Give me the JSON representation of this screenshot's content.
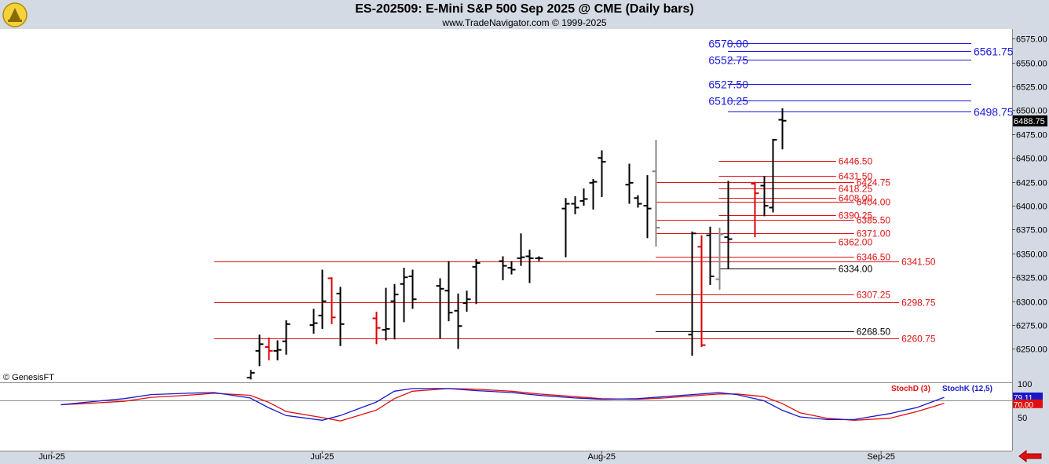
{
  "header": {
    "title": "ES-202509:  E-Mini S&P 500 Sep 2025 @ CME  (Daily bars)",
    "subtitle": "www.TradeNavigator.com © 1999-2025"
  },
  "watermark": "© GenesisFT",
  "colors": {
    "background": "#ffffff",
    "chrome": "#d3dae3",
    "blue_level": "#1a1adc",
    "red_level": "#dc1414",
    "black_level": "#000000",
    "stoch_d": "#e01010",
    "stoch_k": "#1818c8",
    "price_tag": "#000000",
    "down_bar": "#dd0000",
    "gray_bar": "#888888"
  },
  "chart_data": [
    {
      "type": "ohlc",
      "ylim": [
        6215,
        6585
      ],
      "yticks": [
        6250,
        6275,
        6300,
        6325,
        6350,
        6375,
        6400,
        6425,
        6450,
        6475,
        6500,
        6525,
        6550,
        6575
      ],
      "ytick_labels": [
        "6250.00",
        "6275.00",
        "6300.00",
        "6325.00",
        "6350.00",
        "6375.00",
        "6400.00",
        "6425.00",
        "6450.00",
        "6475.00",
        "6500.00",
        "6525.00",
        "6550.00",
        "6575.00"
      ],
      "last_price": "6488.75",
      "x_months": [
        "Jun-25",
        "Jul-25",
        "Aug-25",
        "Sep-25"
      ],
      "bars": [
        {
          "date": "2025-06-23",
          "o": 6220,
          "h": 6228,
          "l": 6218,
          "c": 6225,
          "col": "black"
        },
        {
          "date": "2025-06-24",
          "o": 6248,
          "h": 6265,
          "l": 6232,
          "c": 6255,
          "col": "black"
        },
        {
          "date": "2025-06-25",
          "o": 6252,
          "h": 6262,
          "l": 6238,
          "c": 6248,
          "col": "red"
        },
        {
          "date": "2025-06-26",
          "o": 6248,
          "h": 6259,
          "l": 6238,
          "c": 6249,
          "col": "black"
        },
        {
          "date": "2025-06-27",
          "o": 6258,
          "h": 6280,
          "l": 6244,
          "c": 6276,
          "col": "black"
        },
        {
          "date": "2025-06-30",
          "o": 6275,
          "h": 6292,
          "l": 6266,
          "c": 6277,
          "col": "black"
        },
        {
          "date": "2025-07-01",
          "o": 6285,
          "h": 6333,
          "l": 6271,
          "c": 6300,
          "col": "black"
        },
        {
          "date": "2025-07-02",
          "o": 6324,
          "h": 6325,
          "l": 6276,
          "c": 6283,
          "col": "red"
        },
        {
          "date": "2025-07-03",
          "o": 6308,
          "h": 6315,
          "l": 6253,
          "c": 6276,
          "col": "black"
        },
        {
          "date": "2025-07-07",
          "o": 6282,
          "h": 6289,
          "l": 6255,
          "c": 6272,
          "col": "red"
        },
        {
          "date": "2025-07-08",
          "o": 6270,
          "h": 6314,
          "l": 6259,
          "c": 6271,
          "col": "black"
        },
        {
          "date": "2025-07-09",
          "o": 6300,
          "h": 6318,
          "l": 6260,
          "c": 6307,
          "col": "black"
        },
        {
          "date": "2025-07-10",
          "o": 6318,
          "h": 6335,
          "l": 6278,
          "c": 6325,
          "col": "black"
        },
        {
          "date": "2025-07-11",
          "o": 6326,
          "h": 6333,
          "l": 6292,
          "c": 6302,
          "col": "black"
        },
        {
          "date": "2025-07-14",
          "o": 6316,
          "h": 6324,
          "l": 6261,
          "c": 6313,
          "col": "black"
        },
        {
          "date": "2025-07-15",
          "o": 6311,
          "h": 6342,
          "l": 6279,
          "c": 6288,
          "col": "black"
        },
        {
          "date": "2025-07-16",
          "o": 6290,
          "h": 6308,
          "l": 6250,
          "c": 6274,
          "col": "black"
        },
        {
          "date": "2025-07-17",
          "o": 6298,
          "h": 6311,
          "l": 6289,
          "c": 6302,
          "col": "black"
        },
        {
          "date": "2025-07-18",
          "o": 6336,
          "h": 6344,
          "l": 6297,
          "c": 6340,
          "col": "black"
        },
        {
          "date": "2025-07-21",
          "o": 6342,
          "h": 6347,
          "l": 6322,
          "c": 6337,
          "col": "black"
        },
        {
          "date": "2025-07-22",
          "o": 6335,
          "h": 6342,
          "l": 6328,
          "c": 6333,
          "col": "black"
        },
        {
          "date": "2025-07-23",
          "o": 6345,
          "h": 6371,
          "l": 6337,
          "c": 6346,
          "col": "black"
        },
        {
          "date": "2025-07-24",
          "o": 6347,
          "h": 6354,
          "l": 6319,
          "c": 6345,
          "col": "black"
        },
        {
          "date": "2025-07-25",
          "o": 6345,
          "h": 6347,
          "l": 6342,
          "c": 6345,
          "col": "black"
        },
        {
          "date": "2025-07-28",
          "o": 6397,
          "h": 6408,
          "l": 6346,
          "c": 6402,
          "col": "black"
        },
        {
          "date": "2025-07-29",
          "o": 6402,
          "h": 6410,
          "l": 6391,
          "c": 6398,
          "col": "black"
        },
        {
          "date": "2025-07-30",
          "o": 6405,
          "h": 6418,
          "l": 6400,
          "c": 6407,
          "col": "black"
        },
        {
          "date": "2025-07-31",
          "o": 6424,
          "h": 6428,
          "l": 6396,
          "c": 6425,
          "col": "black"
        },
        {
          "date": "2025-08-01",
          "o": 6450,
          "h": 6458,
          "l": 6409,
          "c": 6446,
          "col": "black"
        },
        {
          "date": "2025-08-04",
          "o": 6422,
          "h": 6444,
          "l": 6402,
          "c": 6424,
          "col": "black"
        },
        {
          "date": "2025-08-05",
          "o": 6408,
          "h": 6411,
          "l": 6398,
          "c": 6402,
          "col": "black"
        },
        {
          "date": "2025-08-06",
          "o": 6400,
          "h": 6432,
          "l": 6366,
          "c": 6397,
          "col": "black"
        },
        {
          "date": "2025-08-07",
          "o": 6436,
          "h": 6469,
          "l": 6357,
          "c": 6377,
          "col": "gray"
        },
        {
          "date": "2025-08-11",
          "o": 6265,
          "h": 6373,
          "l": 6243,
          "c": 6371,
          "col": "black"
        },
        {
          "date": "2025-08-12",
          "o": 6357,
          "h": 6369,
          "l": 6252,
          "c": 6254,
          "col": "red"
        },
        {
          "date": "2025-08-13",
          "o": 6369,
          "h": 6378,
          "l": 6317,
          "c": 6326,
          "col": "black"
        },
        {
          "date": "2025-08-14",
          "o": 6323,
          "h": 6377,
          "l": 6312,
          "c": 6370,
          "col": "gray"
        },
        {
          "date": "2025-08-15",
          "o": 6367,
          "h": 6426,
          "l": 6334,
          "c": 6365,
          "col": "black"
        },
        {
          "date": "2025-08-18",
          "o": 6423,
          "h": 6425,
          "l": 6367,
          "c": 6413,
          "col": "red"
        },
        {
          "date": "2025-08-19",
          "o": 6421,
          "h": 6431,
          "l": 6389,
          "c": 6400,
          "col": "black"
        },
        {
          "date": "2025-08-20",
          "o": 6398,
          "h": 6470,
          "l": 6393,
          "c": 6469,
          "col": "black"
        },
        {
          "date": "2025-08-21",
          "o": 6490,
          "h": 6502,
          "l": 6459,
          "c": 6489,
          "col": "black"
        }
      ],
      "levels": [
        {
          "value": 6570.0,
          "label": "6570.00",
          "side": "left",
          "from": "2025-08-15",
          "to": "2025-09-11",
          "color": "blue"
        },
        {
          "value": 6561.75,
          "label": "6561.75",
          "side": "right",
          "from": "2025-08-15",
          "to": "2025-09-11",
          "color": "blue"
        },
        {
          "value": 6552.75,
          "label": "6552.75",
          "side": "left",
          "from": "2025-08-15",
          "to": "2025-09-11",
          "color": "blue"
        },
        {
          "value": 6527.5,
          "label": "6527.50",
          "side": "left",
          "from": "2025-08-15",
          "to": "2025-09-11",
          "color": "blue"
        },
        {
          "value": 6510.25,
          "label": "6510.25",
          "side": "left",
          "from": "2025-08-15",
          "to": "2025-09-11",
          "color": "blue"
        },
        {
          "value": 6498.75,
          "label": "6498.75",
          "side": "right",
          "from": "2025-08-15",
          "to": "2025-09-11",
          "color": "blue"
        },
        {
          "value": 6446.5,
          "label": "6446.50",
          "side": "right",
          "from": "2025-08-14",
          "to": "2025-08-27",
          "color": "red"
        },
        {
          "value": 6431.5,
          "label": "6431.50",
          "side": "right",
          "from": "2025-08-14",
          "to": "2025-08-27",
          "color": "red"
        },
        {
          "value": 6424.75,
          "label": "6424.75",
          "side": "right",
          "from": "2025-08-07",
          "to": "2025-08-29",
          "color": "red"
        },
        {
          "value": 6418.25,
          "label": "6418.25",
          "side": "right",
          "from": "2025-08-14",
          "to": "2025-08-27",
          "color": "red"
        },
        {
          "value": 6408.0,
          "label": "6408.00",
          "side": "right",
          "from": "2025-08-14",
          "to": "2025-08-27",
          "color": "red"
        },
        {
          "value": 6404.0,
          "label": "6404.00",
          "side": "right",
          "from": "2025-08-07",
          "to": "2025-08-29",
          "color": "red"
        },
        {
          "value": 6390.25,
          "label": "6390.25",
          "side": "right",
          "from": "2025-08-14",
          "to": "2025-08-27",
          "color": "red"
        },
        {
          "value": 6385.5,
          "label": "6385.50",
          "side": "right",
          "from": "2025-08-07",
          "to": "2025-08-29",
          "color": "red"
        },
        {
          "value": 6371.0,
          "label": "6371.00",
          "side": "right",
          "from": "2025-08-07",
          "to": "2025-08-29",
          "color": "red"
        },
        {
          "value": 6362.0,
          "label": "6362.00",
          "side": "right",
          "from": "2025-08-14",
          "to": "2025-08-27",
          "color": "red"
        },
        {
          "value": 6346.5,
          "label": "6346.50",
          "side": "right",
          "from": "2025-08-07",
          "to": "2025-08-29",
          "color": "red"
        },
        {
          "value": 6341.5,
          "label": "6341.50",
          "side": "right",
          "from": "2025-06-19",
          "to": "2025-09-03",
          "color": "red"
        },
        {
          "value": 6334.0,
          "label": "6334.00",
          "side": "right",
          "from": "2025-08-14",
          "to": "2025-08-27",
          "color": "black"
        },
        {
          "value": 6307.25,
          "label": "6307.25",
          "side": "right",
          "from": "2025-08-07",
          "to": "2025-08-29",
          "color": "red"
        },
        {
          "value": 6298.75,
          "label": "6298.75",
          "side": "right",
          "from": "2025-06-19",
          "to": "2025-09-03",
          "color": "red"
        },
        {
          "value": 6268.5,
          "label": "6268.50",
          "side": "right",
          "from": "2025-08-07",
          "to": "2025-08-29",
          "color": "black"
        },
        {
          "value": 6260.75,
          "label": "6260.75",
          "side": "right",
          "from": "2025-06-19",
          "to": "2025-09-03",
          "color": "red"
        }
      ]
    },
    {
      "type": "line",
      "ylim": [
        0,
        100
      ],
      "yticks": [
        50,
        100
      ],
      "reference_line": 75,
      "last_values": {
        "stochk": "79.11",
        "stochd": "70.00"
      },
      "series": [
        {
          "name": "StochD (3)",
          "key": "stochd",
          "points": [
            [
              "2025-06-02",
              68
            ],
            [
              "2025-06-05",
              70
            ],
            [
              "2025-06-09",
              73
            ],
            [
              "2025-06-12",
              79
            ],
            [
              "2025-06-16",
              82
            ],
            [
              "2025-06-19",
              85
            ],
            [
              "2025-06-23",
              82
            ],
            [
              "2025-06-25",
              72
            ],
            [
              "2025-06-27",
              58
            ],
            [
              "2025-07-01",
              49
            ],
            [
              "2025-07-03",
              44
            ],
            [
              "2025-07-07",
              60
            ],
            [
              "2025-07-09",
              77
            ],
            [
              "2025-07-11",
              88
            ],
            [
              "2025-07-15",
              92
            ],
            [
              "2025-07-18",
              91
            ],
            [
              "2025-07-22",
              88
            ],
            [
              "2025-07-25",
              84
            ],
            [
              "2025-07-29",
              80
            ],
            [
              "2025-08-01",
              77
            ],
            [
              "2025-08-05",
              76
            ],
            [
              "2025-08-08",
              78
            ],
            [
              "2025-08-12",
              82
            ],
            [
              "2025-08-14",
              84
            ],
            [
              "2025-08-16",
              84
            ],
            [
              "2025-08-19",
              80
            ],
            [
              "2025-08-21",
              70
            ],
            [
              "2025-08-23",
              56
            ],
            [
              "2025-08-26",
              48
            ],
            [
              "2025-08-29",
              45
            ],
            [
              "2025-09-02",
              48
            ],
            [
              "2025-09-05",
              58
            ],
            [
              "2025-09-08",
              70
            ]
          ]
        },
        {
          "name": "StochK (12,5)",
          "key": "stochk",
          "points": [
            [
              "2025-06-02",
              68
            ],
            [
              "2025-06-05",
              72
            ],
            [
              "2025-06-09",
              77
            ],
            [
              "2025-06-12",
              83
            ],
            [
              "2025-06-16",
              85
            ],
            [
              "2025-06-19",
              86
            ],
            [
              "2025-06-23",
              78
            ],
            [
              "2025-06-25",
              64
            ],
            [
              "2025-06-27",
              52
            ],
            [
              "2025-07-01",
              45
            ],
            [
              "2025-07-03",
              52
            ],
            [
              "2025-07-07",
              72
            ],
            [
              "2025-07-09",
              88
            ],
            [
              "2025-07-11",
              92
            ],
            [
              "2025-07-15",
              92
            ],
            [
              "2025-07-18",
              89
            ],
            [
              "2025-07-22",
              86
            ],
            [
              "2025-07-25",
              82
            ],
            [
              "2025-07-29",
              78
            ],
            [
              "2025-08-01",
              76
            ],
            [
              "2025-08-05",
              77
            ],
            [
              "2025-08-08",
              80
            ],
            [
              "2025-08-12",
              84
            ],
            [
              "2025-08-14",
              86
            ],
            [
              "2025-08-16",
              83
            ],
            [
              "2025-08-19",
              74
            ],
            [
              "2025-08-21",
              60
            ],
            [
              "2025-08-23",
              50
            ],
            [
              "2025-08-26",
              46
            ],
            [
              "2025-08-29",
              46
            ],
            [
              "2025-09-02",
              55
            ],
            [
              "2025-09-05",
              64
            ],
            [
              "2025-09-08",
              79
            ]
          ]
        }
      ]
    }
  ]
}
